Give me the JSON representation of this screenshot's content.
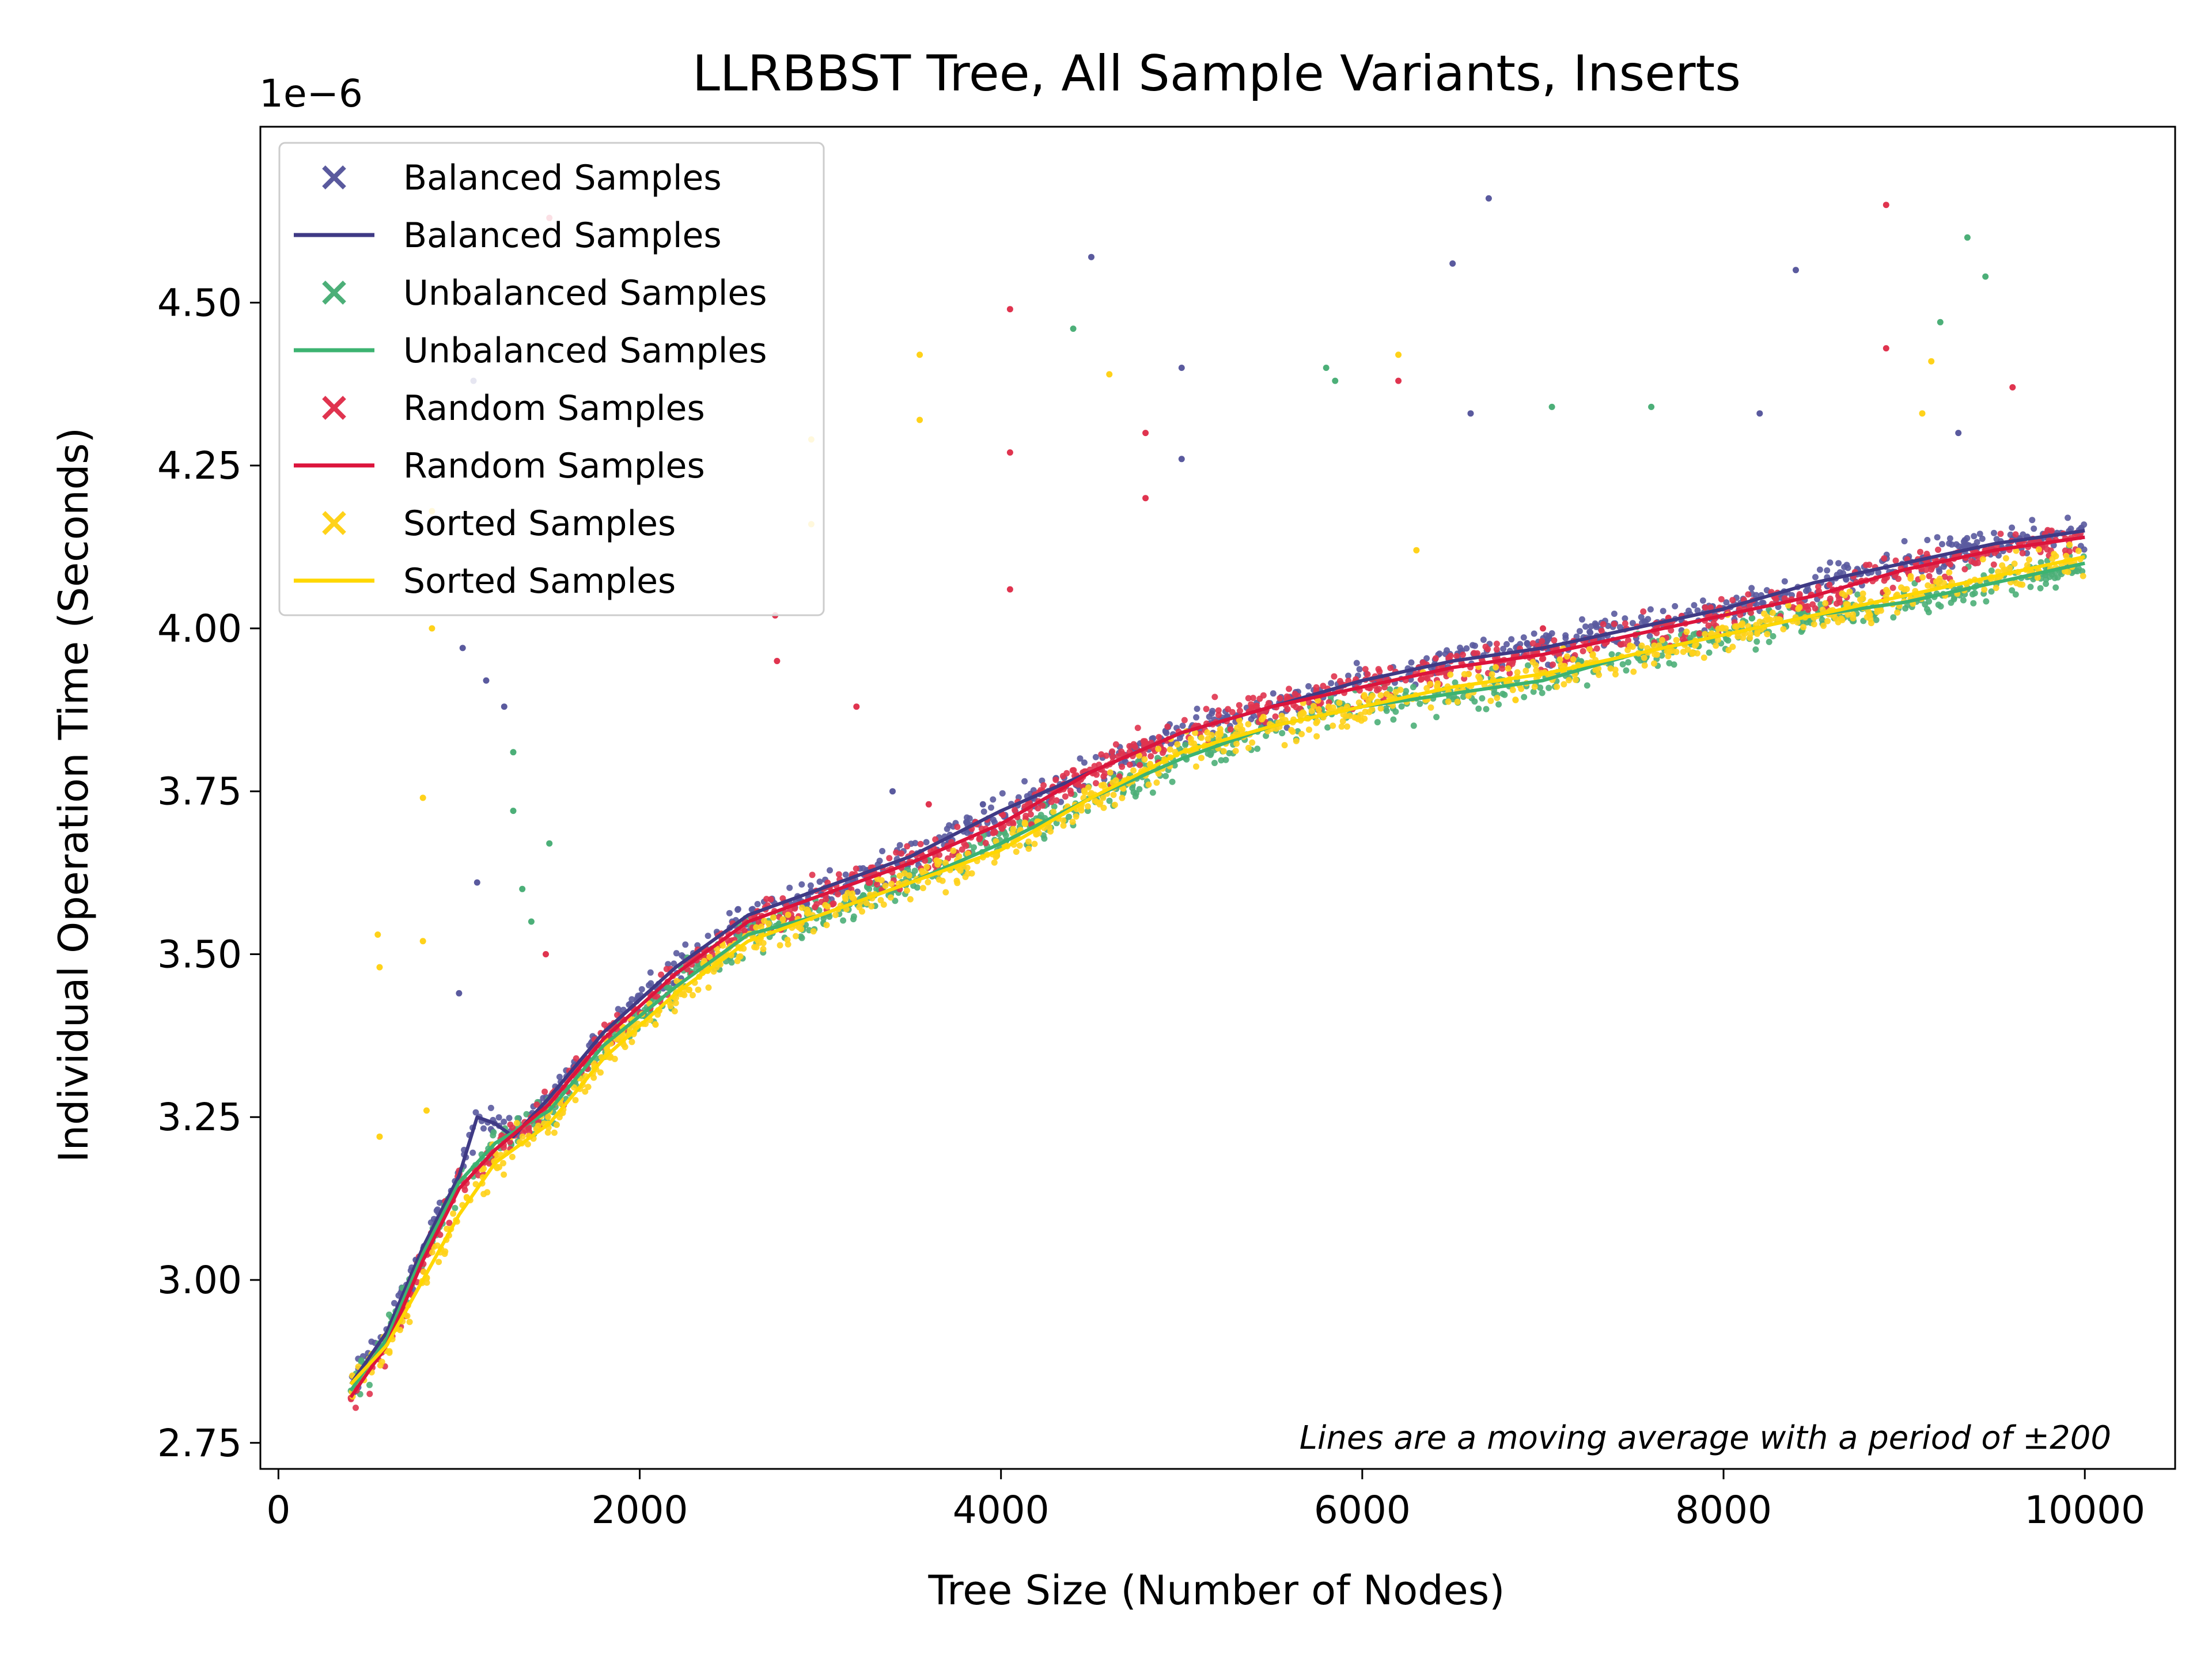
{
  "chart_data": {
    "type": "scatter",
    "title": "LLRBBST Tree, All Sample Variants, Inserts",
    "xlabel": "Tree Size (Number of Nodes)",
    "ylabel": "Individual Operation Time (Seconds)",
    "y_offset_label": "1e−6",
    "xlim": [
      -100,
      10500
    ],
    "ylim": [
      2.71,
      4.77
    ],
    "x_ticks": [
      0,
      2000,
      4000,
      6000,
      8000,
      10000
    ],
    "x_tick_labels": [
      "0",
      "2000",
      "4000",
      "6000",
      "8000",
      "10000"
    ],
    "y_ticks": [
      2.75,
      3.0,
      3.25,
      3.5,
      3.75,
      4.0,
      4.25,
      4.5
    ],
    "y_tick_labels": [
      "2.75",
      "3.00",
      "3.25",
      "3.50",
      "3.75",
      "4.00",
      "4.25",
      "4.50"
    ],
    "grid": false,
    "legend_position": "top-left",
    "annotation": "Lines are a moving average with a period of ±200",
    "x_range": [
      400,
      10000
    ],
    "series": [
      {
        "name": "Balanced Samples",
        "kind": "scatter",
        "marker": "x",
        "color": "#5a5a9e",
        "trend": [
          [
            400,
            2.84
          ],
          [
            600,
            2.92
          ],
          [
            800,
            3.05
          ],
          [
            1000,
            3.16
          ],
          [
            1100,
            3.25
          ],
          [
            1200,
            3.24
          ],
          [
            1300,
            3.22
          ],
          [
            1500,
            3.28
          ],
          [
            1800,
            3.38
          ],
          [
            2200,
            3.48
          ],
          [
            2600,
            3.56
          ],
          [
            3000,
            3.6
          ],
          [
            3500,
            3.65
          ],
          [
            4000,
            3.72
          ],
          [
            4500,
            3.78
          ],
          [
            5000,
            3.84
          ],
          [
            5500,
            3.88
          ],
          [
            6000,
            3.92
          ],
          [
            6500,
            3.95
          ],
          [
            7000,
            3.97
          ],
          [
            7500,
            4.0
          ],
          [
            8000,
            4.03
          ],
          [
            8500,
            4.07
          ],
          [
            9000,
            4.1
          ],
          [
            9500,
            4.13
          ],
          [
            10000,
            4.15
          ]
        ],
        "outliers": [
          [
            1020,
            3.97
          ],
          [
            1080,
            4.38
          ],
          [
            1150,
            3.92
          ],
          [
            1250,
            3.88
          ],
          [
            1100,
            3.61
          ],
          [
            3400,
            3.75
          ],
          [
            4500,
            4.57
          ],
          [
            5000,
            4.4
          ],
          [
            5000,
            4.26
          ],
          [
            6500,
            4.56
          ],
          [
            6700,
            4.66
          ],
          [
            6600,
            4.33
          ],
          [
            8200,
            4.33
          ],
          [
            8400,
            4.55
          ],
          [
            9300,
            4.3
          ],
          [
            1000,
            3.44
          ],
          [
            2800,
            3.58
          ],
          [
            3900,
            3.73
          ]
        ]
      },
      {
        "name": "Balanced Samples",
        "kind": "line",
        "color": "#3f3a85",
        "values": [
          [
            400,
            2.84
          ],
          [
            600,
            2.92
          ],
          [
            800,
            3.05
          ],
          [
            1000,
            3.16
          ],
          [
            1100,
            3.25
          ],
          [
            1200,
            3.24
          ],
          [
            1300,
            3.22
          ],
          [
            1500,
            3.28
          ],
          [
            1800,
            3.38
          ],
          [
            2200,
            3.48
          ],
          [
            2600,
            3.56
          ],
          [
            3000,
            3.6
          ],
          [
            3500,
            3.65
          ],
          [
            4000,
            3.72
          ],
          [
            4500,
            3.78
          ],
          [
            5000,
            3.84
          ],
          [
            5500,
            3.88
          ],
          [
            6000,
            3.92
          ],
          [
            6500,
            3.95
          ],
          [
            7000,
            3.97
          ],
          [
            7500,
            4.0
          ],
          [
            8000,
            4.03
          ],
          [
            8500,
            4.07
          ],
          [
            9000,
            4.1
          ],
          [
            9500,
            4.13
          ],
          [
            10000,
            4.15
          ]
        ]
      },
      {
        "name": "Unbalanced Samples",
        "kind": "scatter",
        "marker": "x",
        "color": "#4caf78",
        "trend": [
          [
            400,
            2.83
          ],
          [
            600,
            2.91
          ],
          [
            800,
            3.04
          ],
          [
            1000,
            3.15
          ],
          [
            1200,
            3.21
          ],
          [
            1500,
            3.26
          ],
          [
            1800,
            3.36
          ],
          [
            2200,
            3.45
          ],
          [
            2600,
            3.53
          ],
          [
            3000,
            3.56
          ],
          [
            3500,
            3.61
          ],
          [
            4000,
            3.67
          ],
          [
            4500,
            3.74
          ],
          [
            5000,
            3.8
          ],
          [
            5500,
            3.85
          ],
          [
            6000,
            3.88
          ],
          [
            6500,
            3.9
          ],
          [
            7000,
            3.92
          ],
          [
            7500,
            3.96
          ],
          [
            8000,
            3.99
          ],
          [
            8500,
            4.02
          ],
          [
            9000,
            4.04
          ],
          [
            9500,
            4.07
          ],
          [
            10000,
            4.1
          ]
        ],
        "outliers": [
          [
            1300,
            3.81
          ],
          [
            1350,
            3.6
          ],
          [
            1400,
            3.55
          ],
          [
            1500,
            3.67
          ],
          [
            4400,
            4.46
          ],
          [
            5800,
            4.4
          ],
          [
            5850,
            4.38
          ],
          [
            7050,
            4.34
          ],
          [
            7600,
            4.34
          ],
          [
            9200,
            4.47
          ],
          [
            9350,
            4.6
          ],
          [
            9450,
            4.54
          ],
          [
            1300,
            3.72
          ]
        ]
      },
      {
        "name": "Unbalanced Samples",
        "kind": "line",
        "color": "#3cb371",
        "values": [
          [
            400,
            2.83
          ],
          [
            600,
            2.91
          ],
          [
            800,
            3.04
          ],
          [
            1000,
            3.15
          ],
          [
            1200,
            3.21
          ],
          [
            1500,
            3.26
          ],
          [
            1800,
            3.36
          ],
          [
            2200,
            3.45
          ],
          [
            2600,
            3.53
          ],
          [
            3000,
            3.56
          ],
          [
            3500,
            3.61
          ],
          [
            4000,
            3.67
          ],
          [
            4500,
            3.74
          ],
          [
            5000,
            3.8
          ],
          [
            5500,
            3.85
          ],
          [
            6000,
            3.88
          ],
          [
            6500,
            3.9
          ],
          [
            7000,
            3.92
          ],
          [
            7500,
            3.96
          ],
          [
            8000,
            3.99
          ],
          [
            8500,
            4.02
          ],
          [
            9000,
            4.04
          ],
          [
            9500,
            4.07
          ],
          [
            10000,
            4.1
          ]
        ]
      },
      {
        "name": "Random Samples",
        "kind": "scatter",
        "marker": "x",
        "color": "#e0344f",
        "trend": [
          [
            400,
            2.82
          ],
          [
            600,
            2.9
          ],
          [
            800,
            3.03
          ],
          [
            1000,
            3.14
          ],
          [
            1200,
            3.2
          ],
          [
            1500,
            3.27
          ],
          [
            1800,
            3.37
          ],
          [
            2200,
            3.47
          ],
          [
            2600,
            3.55
          ],
          [
            3000,
            3.59
          ],
          [
            3500,
            3.64
          ],
          [
            4000,
            3.7
          ],
          [
            4500,
            3.78
          ],
          [
            5000,
            3.84
          ],
          [
            5500,
            3.88
          ],
          [
            6000,
            3.91
          ],
          [
            6500,
            3.94
          ],
          [
            7000,
            3.96
          ],
          [
            7500,
            3.99
          ],
          [
            8000,
            4.02
          ],
          [
            8500,
            4.05
          ],
          [
            9000,
            4.09
          ],
          [
            9500,
            4.12
          ],
          [
            10000,
            4.14
          ]
        ],
        "outliers": [
          [
            1500,
            4.63
          ],
          [
            1480,
            3.5
          ],
          [
            2750,
            4.02
          ],
          [
            2760,
            3.95
          ],
          [
            3200,
            3.88
          ],
          [
            4050,
            4.49
          ],
          [
            4050,
            4.27
          ],
          [
            4050,
            4.06
          ],
          [
            4800,
            4.3
          ],
          [
            4800,
            4.2
          ],
          [
            6200,
            4.38
          ],
          [
            7000,
            4.0
          ],
          [
            8900,
            4.65
          ],
          [
            8900,
            4.43
          ],
          [
            9600,
            4.37
          ],
          [
            3600,
            3.73
          ]
        ]
      },
      {
        "name": "Random Samples",
        "kind": "line",
        "color": "#dc143c",
        "values": [
          [
            400,
            2.82
          ],
          [
            600,
            2.9
          ],
          [
            800,
            3.03
          ],
          [
            1000,
            3.14
          ],
          [
            1200,
            3.2
          ],
          [
            1500,
            3.27
          ],
          [
            1800,
            3.37
          ],
          [
            2200,
            3.47
          ],
          [
            2600,
            3.55
          ],
          [
            3000,
            3.59
          ],
          [
            3500,
            3.64
          ],
          [
            4000,
            3.7
          ],
          [
            4500,
            3.78
          ],
          [
            5000,
            3.84
          ],
          [
            5500,
            3.88
          ],
          [
            6000,
            3.91
          ],
          [
            6500,
            3.94
          ],
          [
            7000,
            3.96
          ],
          [
            7500,
            3.99
          ],
          [
            8000,
            4.02
          ],
          [
            8500,
            4.05
          ],
          [
            9000,
            4.09
          ],
          [
            9500,
            4.12
          ],
          [
            10000,
            4.14
          ]
        ]
      },
      {
        "name": "Sorted Samples",
        "kind": "scatter",
        "marker": "x",
        "color": "#ffd21a",
        "trend": [
          [
            400,
            2.84
          ],
          [
            600,
            2.9
          ],
          [
            800,
            3.0
          ],
          [
            1000,
            3.1
          ],
          [
            1200,
            3.18
          ],
          [
            1500,
            3.24
          ],
          [
            1800,
            3.34
          ],
          [
            2200,
            3.44
          ],
          [
            2600,
            3.52
          ],
          [
            3000,
            3.56
          ],
          [
            3500,
            3.61
          ],
          [
            4000,
            3.66
          ],
          [
            4500,
            3.74
          ],
          [
            5000,
            3.81
          ],
          [
            5500,
            3.85
          ],
          [
            6000,
            3.88
          ],
          [
            6500,
            3.91
          ],
          [
            7000,
            3.93
          ],
          [
            7500,
            3.96
          ],
          [
            8000,
            3.99
          ],
          [
            8500,
            4.02
          ],
          [
            9000,
            4.05
          ],
          [
            9500,
            4.08
          ],
          [
            10000,
            4.11
          ]
        ],
        "outliers": [
          [
            550,
            3.53
          ],
          [
            560,
            3.48
          ],
          [
            560,
            3.22
          ],
          [
            800,
            3.74
          ],
          [
            800,
            3.52
          ],
          [
            820,
            3.26
          ],
          [
            850,
            4.0
          ],
          [
            850,
            4.18
          ],
          [
            2950,
            4.16
          ],
          [
            2950,
            4.29
          ],
          [
            3550,
            4.42
          ],
          [
            3550,
            4.32
          ],
          [
            4600,
            4.39
          ],
          [
            6200,
            4.42
          ],
          [
            6300,
            4.12
          ],
          [
            9100,
            4.33
          ],
          [
            9150,
            4.41
          ]
        ]
      },
      {
        "name": "Sorted Samples",
        "kind": "line",
        "color": "#ffd700",
        "values": [
          [
            400,
            2.84
          ],
          [
            600,
            2.9
          ],
          [
            800,
            3.0
          ],
          [
            1000,
            3.1
          ],
          [
            1200,
            3.18
          ],
          [
            1500,
            3.24
          ],
          [
            1800,
            3.34
          ],
          [
            2200,
            3.44
          ],
          [
            2600,
            3.52
          ],
          [
            3000,
            3.56
          ],
          [
            3500,
            3.61
          ],
          [
            4000,
            3.66
          ],
          [
            4500,
            3.74
          ],
          [
            5000,
            3.81
          ],
          [
            5500,
            3.85
          ],
          [
            6000,
            3.88
          ],
          [
            6500,
            3.91
          ],
          [
            7000,
            3.93
          ],
          [
            7500,
            3.96
          ],
          [
            8000,
            3.99
          ],
          [
            8500,
            4.02
          ],
          [
            9000,
            4.05
          ],
          [
            9500,
            4.08
          ],
          [
            10000,
            4.11
          ]
        ]
      }
    ]
  }
}
